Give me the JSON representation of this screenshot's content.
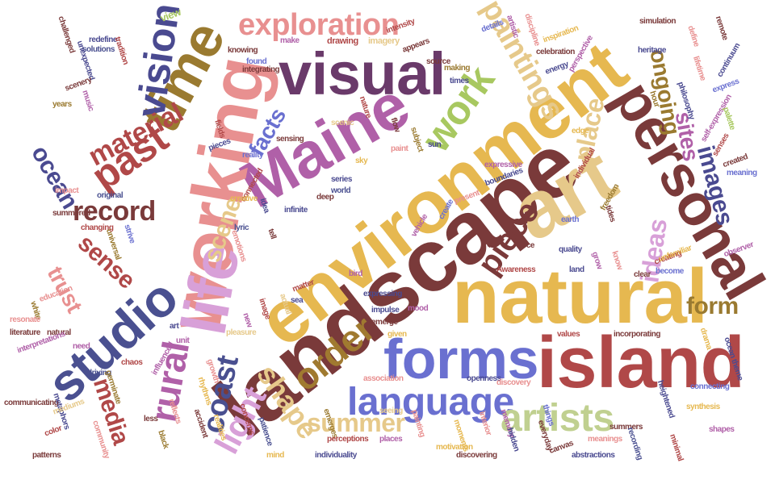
{
  "words": [
    {
      "text": "landscape",
      "color": "#7a3a3a",
      "emphasis": 1.0
    },
    {
      "text": "environment",
      "color": "#e6b850",
      "emphasis": 0.95
    },
    {
      "text": "natural",
      "color": "#e6b850",
      "emphasis": 0.85
    },
    {
      "text": "art",
      "color": "#e6c98a",
      "emphasis": 0.85
    },
    {
      "text": "island",
      "color": "#b04848",
      "emphasis": 0.8
    },
    {
      "text": "personal",
      "color": "#7a3a3a",
      "emphasis": 0.75
    },
    {
      "text": "Maine",
      "color": "#b060a8",
      "emphasis": 0.75
    },
    {
      "text": "working",
      "color": "#e89090",
      "emphasis": 0.75
    },
    {
      "text": "life",
      "color": "#d8a0d8",
      "emphasis": 0.7
    },
    {
      "text": "visual",
      "color": "#6a3a6a",
      "emphasis": 0.7
    },
    {
      "text": "time",
      "color": "#9a7a30",
      "emphasis": 0.7
    },
    {
      "text": "forms",
      "color": "#6a70d0",
      "emphasis": 0.6
    },
    {
      "text": "studio",
      "color": "#4a5090",
      "emphasis": 0.55
    },
    {
      "text": "vision",
      "color": "#4a4a90",
      "emphasis": 0.5
    },
    {
      "text": "language",
      "color": "#6a70d0",
      "emphasis": 0.45
    },
    {
      "text": "artists",
      "color": "#c0d090",
      "emphasis": 0.45
    },
    {
      "text": "work",
      "color": "#a8c860",
      "emphasis": 0.45
    },
    {
      "text": "order",
      "color": "#a07a30",
      "emphasis": 0.4
    },
    {
      "text": "exploration",
      "color": "#e89090",
      "emphasis": 0.4
    },
    {
      "text": "paintings",
      "color": "#e6c98a",
      "emphasis": 0.4
    },
    {
      "text": "past",
      "color": "#b04848",
      "emphasis": 0.38
    },
    {
      "text": "material",
      "color": "#b04848",
      "emphasis": 0.35
    },
    {
      "text": "rural",
      "color": "#b060a8",
      "emphasis": 0.38
    },
    {
      "text": "light",
      "color": "#d8a0d8",
      "emphasis": 0.35
    },
    {
      "text": "shape",
      "color": "#e6c98a",
      "emphasis": 0.35
    },
    {
      "text": "coast",
      "color": "#4a5090",
      "emphasis": 0.35
    },
    {
      "text": "record",
      "color": "#7a3a3a",
      "emphasis": 0.32
    },
    {
      "text": "piece",
      "color": "#7a3a3a",
      "emphasis": 0.32
    },
    {
      "text": "scene",
      "color": "#e6c98a",
      "emphasis": 0.3
    },
    {
      "text": "sense",
      "color": "#b04848",
      "emphasis": 0.3
    },
    {
      "text": "ocean",
      "color": "#4a4a90",
      "emphasis": 0.3
    },
    {
      "text": "facts",
      "color": "#6a70d0",
      "emphasis": 0.3
    },
    {
      "text": "place",
      "color": "#e6c98a",
      "emphasis": 0.3
    },
    {
      "text": "ideas",
      "color": "#d8a0d8",
      "emphasis": 0.3
    },
    {
      "text": "images",
      "color": "#4a4a90",
      "emphasis": 0.3
    },
    {
      "text": "sites",
      "color": "#b060a8",
      "emphasis": 0.28
    },
    {
      "text": "ongoing",
      "color": "#9a7a30",
      "emphasis": 0.28
    },
    {
      "text": "summer",
      "color": "#e6c98a",
      "emphasis": 0.28
    },
    {
      "text": "form",
      "color": "#9a7a30",
      "emphasis": 0.28
    },
    {
      "text": "media",
      "color": "#b04848",
      "emphasis": 0.28
    },
    {
      "text": "trust",
      "color": "#e89090",
      "emphasis": 0.26
    },
    {
      "text": "view",
      "color": "#a8c860",
      "emphasis": 0.1
    },
    {
      "text": "challenged",
      "color": "#7a3a3a",
      "emphasis": 0.08
    },
    {
      "text": "redefine",
      "color": "#4a4a90",
      "emphasis": 0.08
    },
    {
      "text": "solutions",
      "color": "#4a5090",
      "emphasis": 0.08
    },
    {
      "text": "unexpected",
      "color": "#4a4a90",
      "emphasis": 0.08
    },
    {
      "text": "music",
      "color": "#b060a8",
      "emphasis": 0.08
    },
    {
      "text": "years",
      "color": "#9a7a30",
      "emphasis": 0.08
    },
    {
      "text": "scenery",
      "color": "#7a3a3a",
      "emphasis": 0.08
    },
    {
      "text": "tradition",
      "color": "#b04848",
      "emphasis": 0.08
    },
    {
      "text": "make",
      "color": "#b060a8",
      "emphasis": 0.08
    },
    {
      "text": "drawing",
      "color": "#b04848",
      "emphasis": 0.08
    },
    {
      "text": "imagery",
      "color": "#e6c98a",
      "emphasis": 0.08
    },
    {
      "text": "knowing",
      "color": "#7a3a3a",
      "emphasis": 0.08
    },
    {
      "text": "integrating",
      "color": "#7a3a3a",
      "emphasis": 0.08
    },
    {
      "text": "found",
      "color": "#6a70d0",
      "emphasis": 0.08
    },
    {
      "text": "intensity",
      "color": "#b04848",
      "emphasis": 0.08
    },
    {
      "text": "appears",
      "color": "#7a3a3a",
      "emphasis": 0.08
    },
    {
      "text": "source",
      "color": "#7a3a3a",
      "emphasis": 0.08
    },
    {
      "text": "making",
      "color": "#9a7a30",
      "emphasis": 0.08
    },
    {
      "text": "times",
      "color": "#4a4a90",
      "emphasis": 0.08
    },
    {
      "text": "details",
      "color": "#6a70d0",
      "emphasis": 0.08
    },
    {
      "text": "artistic",
      "color": "#b060a8",
      "emphasis": 0.08
    },
    {
      "text": "discipline",
      "color": "#e89090",
      "emphasis": 0.08
    },
    {
      "text": "inspiration",
      "color": "#e6b850",
      "emphasis": 0.08
    },
    {
      "text": "celebration",
      "color": "#7a3a3a",
      "emphasis": 0.08
    },
    {
      "text": "energy",
      "color": "#4a4a90",
      "emphasis": 0.08
    },
    {
      "text": "perspective",
      "color": "#b060a8",
      "emphasis": 0.08
    },
    {
      "text": "simulation",
      "color": "#7a3a3a",
      "emphasis": 0.08
    },
    {
      "text": "heritage",
      "color": "#4a4a90",
      "emphasis": 0.08
    },
    {
      "text": "define",
      "color": "#e89090",
      "emphasis": 0.08
    },
    {
      "text": "remote",
      "color": "#7a3a3a",
      "emphasis": 0.08
    },
    {
      "text": "continuum",
      "color": "#4a4a90",
      "emphasis": 0.08
    },
    {
      "text": "lifetime",
      "color": "#e89090",
      "emphasis": 0.08
    },
    {
      "text": "philosophy",
      "color": "#4a4a90",
      "emphasis": 0.08
    },
    {
      "text": "express",
      "color": "#6a70d0",
      "emphasis": 0.08
    },
    {
      "text": "hour",
      "color": "#9a7a30",
      "emphasis": 0.08
    },
    {
      "text": "self-expression",
      "color": "#b060a8",
      "emphasis": 0.08
    },
    {
      "text": "palette",
      "color": "#a8c860",
      "emphasis": 0.08
    },
    {
      "text": "senses",
      "color": "#b04848",
      "emphasis": 0.08
    },
    {
      "text": "created",
      "color": "#7a3a3a",
      "emphasis": 0.08
    },
    {
      "text": "meaning",
      "color": "#6a70d0",
      "emphasis": 0.08
    },
    {
      "text": "fields",
      "color": "#b04848",
      "emphasis": 0.08
    },
    {
      "text": "pieces",
      "color": "#4a4a90",
      "emphasis": 0.08
    },
    {
      "text": "reality",
      "color": "#6a70d0",
      "emphasis": 0.08
    },
    {
      "text": "sensing",
      "color": "#7a3a3a",
      "emphasis": 0.08
    },
    {
      "text": "scenic",
      "color": "#e6c98a",
      "emphasis": 0.08
    },
    {
      "text": "nature",
      "color": "#b04848",
      "emphasis": 0.08
    },
    {
      "text": "sky",
      "color": "#e6b850",
      "emphasis": 0.08
    },
    {
      "text": "paint",
      "color": "#e89090",
      "emphasis": 0.08
    },
    {
      "text": "flow",
      "color": "#7a3a3a",
      "emphasis": 0.08
    },
    {
      "text": "subject",
      "color": "#9a7a30",
      "emphasis": 0.08
    },
    {
      "text": "sun",
      "color": "#4a4a90",
      "emphasis": 0.08
    },
    {
      "text": "series",
      "color": "#4a4a90",
      "emphasis": 0.08
    },
    {
      "text": "world",
      "color": "#4a5090",
      "emphasis": 0.08
    },
    {
      "text": "deep",
      "color": "#7a3a3a",
      "emphasis": 0.08
    },
    {
      "text": "boundaries",
      "color": "#4a4a90",
      "emphasis": 0.08
    },
    {
      "text": "expressive",
      "color": "#b060a8",
      "emphasis": 0.08
    },
    {
      "text": "individual",
      "color": "#b04848",
      "emphasis": 0.08
    },
    {
      "text": "edge",
      "color": "#e6b850",
      "emphasis": 0.08
    },
    {
      "text": "present",
      "color": "#e89090",
      "emphasis": 0.08
    },
    {
      "text": "freedom",
      "color": "#9a7a30",
      "emphasis": 0.08
    },
    {
      "text": "connected",
      "color": "#b04848",
      "emphasis": 0.08
    },
    {
      "text": "create",
      "color": "#6a70d0",
      "emphasis": 0.08
    },
    {
      "text": "vehicle",
      "color": "#b060a8",
      "emphasis": 0.08
    },
    {
      "text": "infinite",
      "color": "#4a4a90",
      "emphasis": 0.08
    },
    {
      "text": "lyric",
      "color": "#4a5090",
      "emphasis": 0.08
    },
    {
      "text": "creative",
      "color": "#e6b850",
      "emphasis": 0.08
    },
    {
      "text": "strive",
      "color": "#6a70d0",
      "emphasis": 0.08
    },
    {
      "text": "changing",
      "color": "#b04848",
      "emphasis": 0.08
    },
    {
      "text": "universal",
      "color": "#9a7a30",
      "emphasis": 0.08
    },
    {
      "text": "original",
      "color": "#4a5090",
      "emphasis": 0.08
    },
    {
      "text": "summered",
      "color": "#7a3a3a",
      "emphasis": 0.08
    },
    {
      "text": "impact",
      "color": "#e89090",
      "emphasis": 0.08
    },
    {
      "text": "expressing",
      "color": "#4a4a90",
      "emphasis": 0.08
    },
    {
      "text": "bird",
      "color": "#b060a8",
      "emphasis": 0.08
    },
    {
      "text": "impulse",
      "color": "#4a4a90",
      "emphasis": 0.08
    },
    {
      "text": "Awareness",
      "color": "#b04848",
      "emphasis": 0.08
    },
    {
      "text": "quality",
      "color": "#4a4a90",
      "emphasis": 0.08
    },
    {
      "text": "creating",
      "color": "#b04848",
      "emphasis": 0.08
    },
    {
      "text": "become",
      "color": "#6a70d0",
      "emphasis": 0.08
    },
    {
      "text": "observer",
      "color": "#b060a8",
      "emphasis": 0.08
    },
    {
      "text": "unfamiliar",
      "color": "#e6b850",
      "emphasis": 0.08
    },
    {
      "text": "force",
      "color": "#7a3a3a",
      "emphasis": 0.08
    },
    {
      "text": "clear",
      "color": "#7a3a3a",
      "emphasis": 0.08
    },
    {
      "text": "earth",
      "color": "#6a70d0",
      "emphasis": 0.08
    },
    {
      "text": "land",
      "color": "#4a4a90",
      "emphasis": 0.08
    },
    {
      "text": "grow",
      "color": "#b060a8",
      "emphasis": 0.08
    },
    {
      "text": "know",
      "color": "#e89090",
      "emphasis": 0.08
    },
    {
      "text": "tides",
      "color": "#7a3a3a",
      "emphasis": 0.08
    },
    {
      "text": "education",
      "color": "#e89090",
      "emphasis": 0.08
    },
    {
      "text": "white",
      "color": "#9a7a30",
      "emphasis": 0.08
    },
    {
      "text": "resonate",
      "color": "#e89090",
      "emphasis": 0.08
    },
    {
      "text": "literature",
      "color": "#7a3a3a",
      "emphasis": 0.08
    },
    {
      "text": "natural",
      "color": "#7a3a3a",
      "emphasis": 0.08
    },
    {
      "text": "matter",
      "color": "#b04848",
      "emphasis": 0.08
    },
    {
      "text": "sea",
      "color": "#4a4a90",
      "emphasis": 0.08
    },
    {
      "text": "actual",
      "color": "#e6c98a",
      "emphasis": 0.08
    },
    {
      "text": "image",
      "color": "#b04848",
      "emphasis": 0.08
    },
    {
      "text": "new",
      "color": "#b060a8",
      "emphasis": 0.08
    },
    {
      "text": "emerge",
      "color": "#7a3a3a",
      "emphasis": 0.08
    },
    {
      "text": "given",
      "color": "#e6b850",
      "emphasis": 0.08
    },
    {
      "text": "mood",
      "color": "#b060a8",
      "emphasis": 0.08
    },
    {
      "text": "values",
      "color": "#b04848",
      "emphasis": 0.08
    },
    {
      "text": "incorporating",
      "color": "#7a3a3a",
      "emphasis": 0.08
    },
    {
      "text": "drama",
      "color": "#e6b850",
      "emphasis": 0.08
    },
    {
      "text": "ocean theme",
      "color": "#4a4a90",
      "emphasis": 0.08
    },
    {
      "text": "pleasure",
      "color": "#e6c98a",
      "emphasis": 0.08
    },
    {
      "text": "unit",
      "color": "#b060a8",
      "emphasis": 0.08
    },
    {
      "text": "chaos",
      "color": "#b04848",
      "emphasis": 0.08
    },
    {
      "text": "influenced",
      "color": "#b060a8",
      "emphasis": 0.08
    },
    {
      "text": "association",
      "color": "#e89090",
      "emphasis": 0.08
    },
    {
      "text": "openness",
      "color": "#4a4a90",
      "emphasis": 0.08
    },
    {
      "text": "discovery",
      "color": "#e89090",
      "emphasis": 0.08
    },
    {
      "text": "driving",
      "color": "#4a5090",
      "emphasis": 0.08
    },
    {
      "text": "germinate",
      "color": "#9a7a30",
      "emphasis": 0.08
    },
    {
      "text": "growth",
      "color": "#e89090",
      "emphasis": 0.08
    },
    {
      "text": "rhythms",
      "color": "#e6b850",
      "emphasis": 0.08
    },
    {
      "text": "connecting",
      "color": "#6a70d0",
      "emphasis": 0.08
    },
    {
      "text": "heightened",
      "color": "#4a4a90",
      "emphasis": 0.08
    },
    {
      "text": "synthesis",
      "color": "#e6b850",
      "emphasis": 0.08
    },
    {
      "text": "shapes",
      "color": "#b060a8",
      "emphasis": 0.08
    },
    {
      "text": "communicating",
      "color": "#7a3a3a",
      "emphasis": 0.08
    },
    {
      "text": "metaphors",
      "color": "#4a4a90",
      "emphasis": 0.08
    },
    {
      "text": "mediums",
      "color": "#e6c98a",
      "emphasis": 0.08
    },
    {
      "text": "need",
      "color": "#b060a8",
      "emphasis": 0.08
    },
    {
      "text": "less",
      "color": "#7a3a3a",
      "emphasis": 0.08
    },
    {
      "text": "reflects",
      "color": "#e89090",
      "emphasis": 0.08
    },
    {
      "text": "accident",
      "color": "#7a3a3a",
      "emphasis": 0.08
    },
    {
      "text": "realities",
      "color": "#e6b850",
      "emphasis": 0.08
    },
    {
      "text": "concerns",
      "color": "#b04848",
      "emphasis": 0.08
    },
    {
      "text": "patience",
      "color": "#4a5090",
      "emphasis": 0.08
    },
    {
      "text": "emerges",
      "color": "#9a7a30",
      "emphasis": 0.08
    },
    {
      "text": "perceptions",
      "color": "#b04848",
      "emphasis": 0.08
    },
    {
      "text": "painting",
      "color": "#e89090",
      "emphasis": 0.08
    },
    {
      "text": "places",
      "color": "#b060a8",
      "emphasis": 0.08
    },
    {
      "text": "moments",
      "color": "#e6b850",
      "emphasis": 0.08
    },
    {
      "text": "canvas",
      "color": "#7a3a3a",
      "emphasis": 0.08
    },
    {
      "text": "abstractions",
      "color": "#4a4a90",
      "emphasis": 0.08
    },
    {
      "text": "meanings",
      "color": "#e89090",
      "emphasis": 0.08
    },
    {
      "text": "summers",
      "color": "#7a3a3a",
      "emphasis": 0.08
    },
    {
      "text": "recording",
      "color": "#4a5090",
      "emphasis": 0.08
    },
    {
      "text": "individuality",
      "color": "#4a4a90",
      "emphasis": 0.08
    },
    {
      "text": "community",
      "color": "#e89090",
      "emphasis": 0.08
    },
    {
      "text": "patterns",
      "color": "#7a3a3a",
      "emphasis": 0.08
    },
    {
      "text": "black",
      "color": "#9a7a30",
      "emphasis": 0.08
    },
    {
      "text": "color",
      "color": "#b04848",
      "emphasis": 0.08
    },
    {
      "text": "discovering",
      "color": "#7a3a3a",
      "emphasis": 0.08
    },
    {
      "text": "motivation",
      "color": "#e6b850",
      "emphasis": 0.08
    },
    {
      "text": "memory",
      "color": "#b060a8",
      "emphasis": 0.08
    },
    {
      "text": "hidden",
      "color": "#4a4a90",
      "emphasis": 0.08
    },
    {
      "text": "interior",
      "color": "#e89090",
      "emphasis": 0.08
    },
    {
      "text": "everyday",
      "color": "#7a3a3a",
      "emphasis": 0.08
    },
    {
      "text": "things",
      "color": "#6a70d0",
      "emphasis": 0.08
    },
    {
      "text": "minimal",
      "color": "#b04848",
      "emphasis": 0.08
    },
    {
      "text": "seeing",
      "color": "#e6c98a",
      "emphasis": 0.08
    },
    {
      "text": "emotions",
      "color": "#e89090",
      "emphasis": 0.08
    },
    {
      "text": "idea",
      "color": "#4a4a90",
      "emphasis": 0.08
    },
    {
      "text": "tell",
      "color": "#7a3a3a",
      "emphasis": 0.08
    },
    {
      "text": "interpretations",
      "color": "#b060a8",
      "emphasis": 0.08
    },
    {
      "text": "mind",
      "color": "#e6b850",
      "emphasis": 0.08
    },
    {
      "text": "art",
      "color": "#4a4a90",
      "emphasis": 0.08
    }
  ]
}
